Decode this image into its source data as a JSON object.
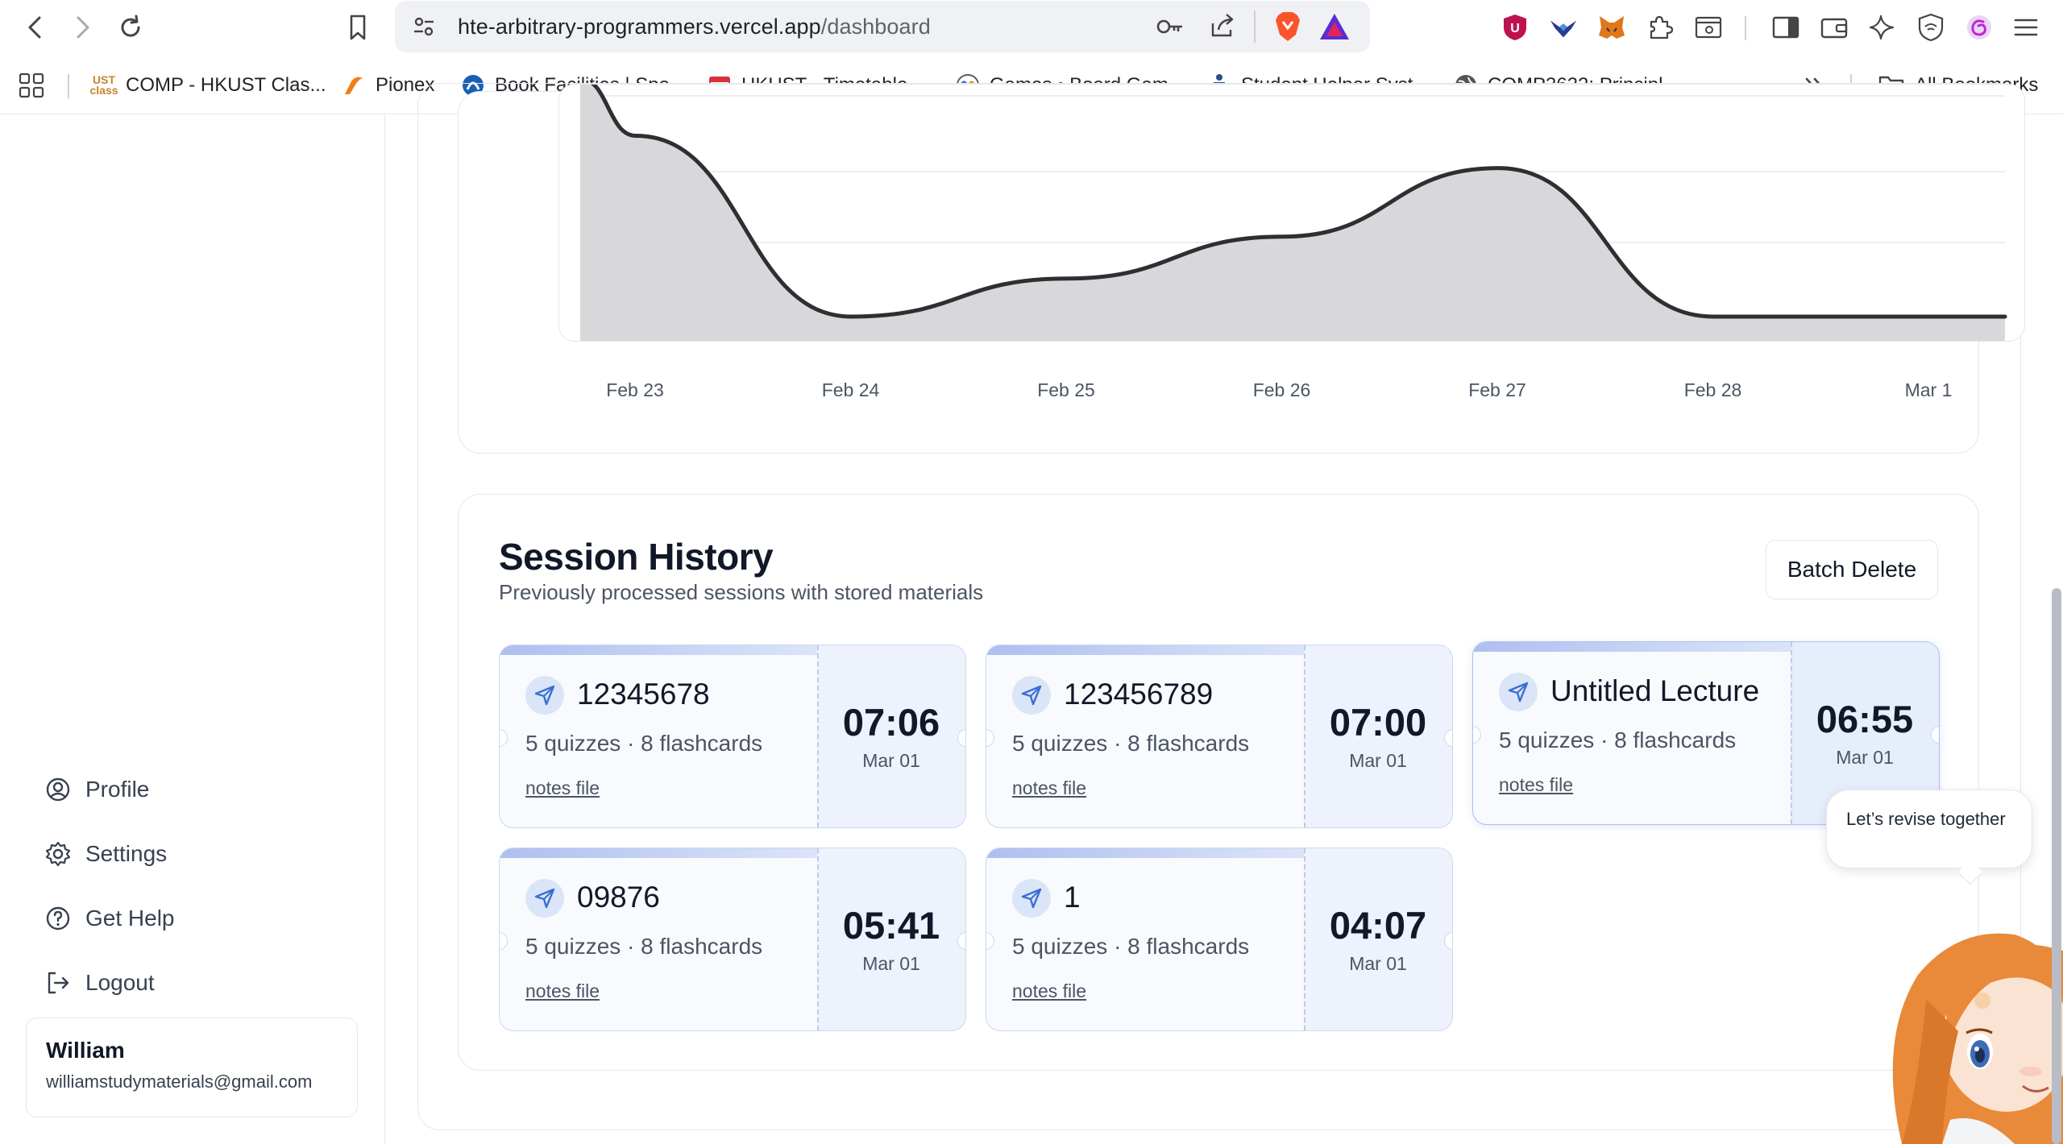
{
  "browser": {
    "url_host": "hte-arbitrary-programmers.vercel.app",
    "url_path": "/dashboard",
    "bookmarks": [
      {
        "label": "COMP - HKUST Clas...",
        "icon": "ust-class-icon",
        "color": "#c9822b"
      },
      {
        "label": "Pionex",
        "icon": "pionex-icon",
        "color": "#f07c1b"
      },
      {
        "label": "Book Facilities | Spo...",
        "icon": "book-facilities-icon",
        "color": "#1a5fb4"
      },
      {
        "label": "HKUST - Timetable...",
        "icon": "calendar-icon",
        "color": "#d9313b"
      },
      {
        "label": "Games • Board Gam...",
        "icon": "games-icon",
        "color": "#3b6fd1"
      },
      {
        "label": "Student Helper Syst...",
        "icon": "student-helper-icon",
        "color": "#2d4f8a"
      },
      {
        "label": "COMP3632: Principl...",
        "icon": "globe-icon",
        "color": "#555555"
      }
    ],
    "all_bookmarks": "All Bookmarks"
  },
  "chart_data": {
    "type": "area",
    "x": [
      "Feb 23",
      "Feb 24",
      "Feb 25",
      "Feb 26",
      "Feb 27",
      "Feb 28",
      "Mar 1"
    ],
    "y_relative": [
      0.95,
      0.0,
      0.2,
      0.42,
      0.78,
      0.0,
      0.0
    ],
    "grid": true,
    "line_color": "#2f2f33",
    "fill_color": "#d8d8da"
  },
  "sidebar": {
    "items": [
      {
        "label": "Profile",
        "icon": "profile-icon"
      },
      {
        "label": "Settings",
        "icon": "gear-icon"
      },
      {
        "label": "Get Help",
        "icon": "help-icon"
      },
      {
        "label": "Logout",
        "icon": "logout-icon"
      }
    ],
    "user": {
      "name": "William",
      "email": "williamstudymaterials@gmail.com"
    }
  },
  "history": {
    "title": "Session History",
    "subtitle": "Previously processed sessions with stored materials",
    "batch_delete": "Batch Delete",
    "sessions": [
      {
        "name": "12345678",
        "meta": "5 quizzes · 8 flashcards",
        "link": "notes file",
        "time": "07:06",
        "date": "Mar 01"
      },
      {
        "name": "123456789",
        "meta": "5 quizzes · 8 flashcards",
        "link": "notes file",
        "time": "07:00",
        "date": "Mar 01"
      },
      {
        "name": "Untitled Lecture",
        "meta": "5 quizzes · 8 flashcards",
        "link": "notes file",
        "time": "06:55",
        "date": "Mar 01"
      },
      {
        "name": "09876",
        "meta": "5 quizzes · 8 flashcards",
        "link": "notes file",
        "time": "05:41",
        "date": "Mar 01"
      },
      {
        "name": "1",
        "meta": "5 quizzes · 8 flashcards",
        "link": "notes file",
        "time": "04:07",
        "date": "Mar 01"
      }
    ]
  },
  "assistant": {
    "bubble": "Let’s revise together"
  }
}
